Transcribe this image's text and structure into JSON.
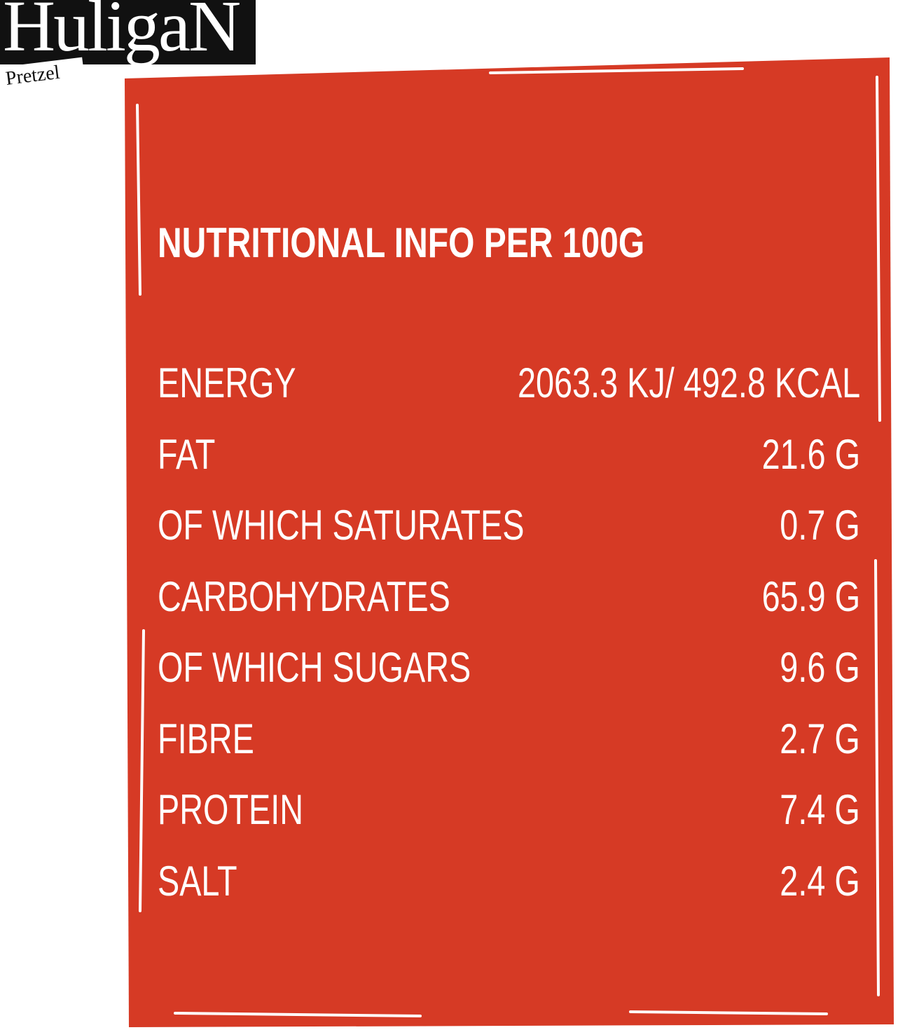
{
  "header": {
    "brand": "HuligaN",
    "subtitle": "Pretzel"
  },
  "table": {
    "title": "NUTRITIONAL INFO PER 100G",
    "rows": [
      {
        "label": "ENERGY",
        "value": "2063.3 KJ/ 492.8 KCAL"
      },
      {
        "label": "FAT",
        "value": "21.6 G"
      },
      {
        "label": "OF WHICH SATURATES",
        "value": "0.7 G"
      },
      {
        "label": "CARBOHYDRATES",
        "value": "65.9 G"
      },
      {
        "label": "OF WHICH SUGARS",
        "value": "9.6 G"
      },
      {
        "label": "FIBRE",
        "value": "2.7 G"
      },
      {
        "label": "PROTEIN",
        "value": "7.4 G"
      },
      {
        "label": "SALT",
        "value": "2.4 G"
      }
    ]
  }
}
